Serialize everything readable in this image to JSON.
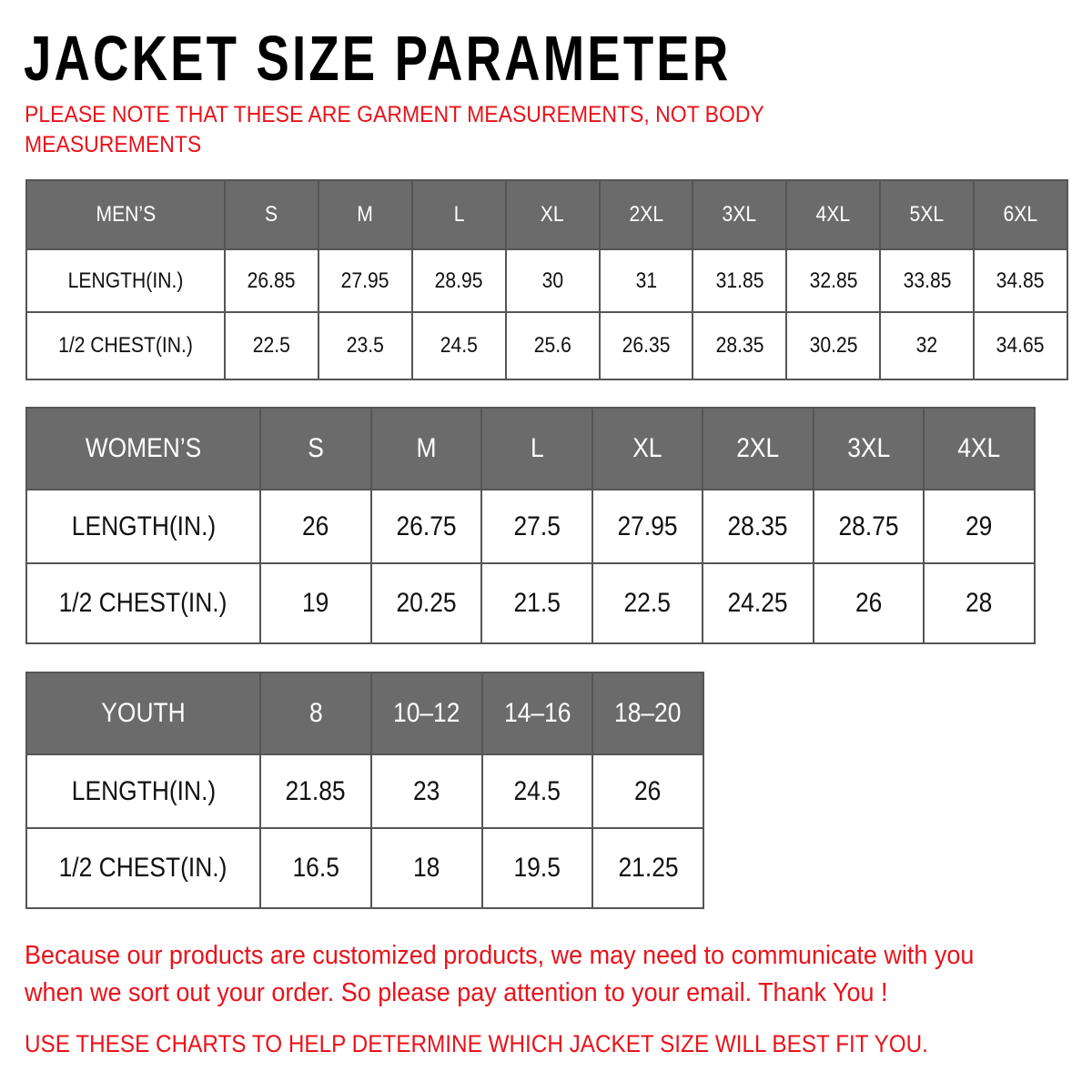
{
  "title": "JACKET SIZE PARAMETER",
  "note": "PLEASE NOTE THAT THESE ARE GARMENT MEASUREMENTS, NOT BODY MEASUREMENTS",
  "colors": {
    "header_bg": "#6b6b6b",
    "accent_red": "#e8131a"
  },
  "tables": {
    "men": {
      "header": [
        "MEN’S",
        "S",
        "M",
        "L",
        "XL",
        "2XL",
        "3XL",
        "4XL",
        "5XL",
        "6XL"
      ],
      "rows": [
        [
          "LENGTH(IN.)",
          "26.85",
          "27.95",
          "28.95",
          "30",
          "31",
          "31.85",
          "32.85",
          "33.85",
          "34.85"
        ],
        [
          "1/2 CHEST(IN.)",
          "22.5",
          "23.5",
          "24.5",
          "25.6",
          "26.35",
          "28.35",
          "30.25",
          "32",
          "34.65"
        ]
      ]
    },
    "women": {
      "header": [
        "WOMEN’S",
        "S",
        "M",
        "L",
        "XL",
        "2XL",
        "3XL",
        "4XL"
      ],
      "rows": [
        [
          "LENGTH(IN.)",
          "26",
          "26.75",
          "27.5",
          "27.95",
          "28.35",
          "28.75",
          "29"
        ],
        [
          "1/2 CHEST(IN.)",
          "19",
          "20.25",
          "21.5",
          "22.5",
          "24.25",
          "26",
          "28"
        ]
      ]
    },
    "youth": {
      "header": [
        "YOUTH",
        "8",
        "10–12",
        "14–16",
        "18–20"
      ],
      "rows": [
        [
          "LENGTH(IN.)",
          "21.85",
          "23",
          "24.5",
          "26"
        ],
        [
          "1/2 CHEST(IN.)",
          "16.5",
          "18",
          "19.5",
          "21.25"
        ]
      ]
    }
  },
  "footer": {
    "line1": "Because our products are customized products, we may need to communicate with you",
    "line2": "when we sort out your order. So please pay attention to your email. Thank You !",
    "line3": "USE THESE CHARTS TO HELP DETERMINE WHICH JACKET SIZE WILL BEST FIT YOU."
  }
}
